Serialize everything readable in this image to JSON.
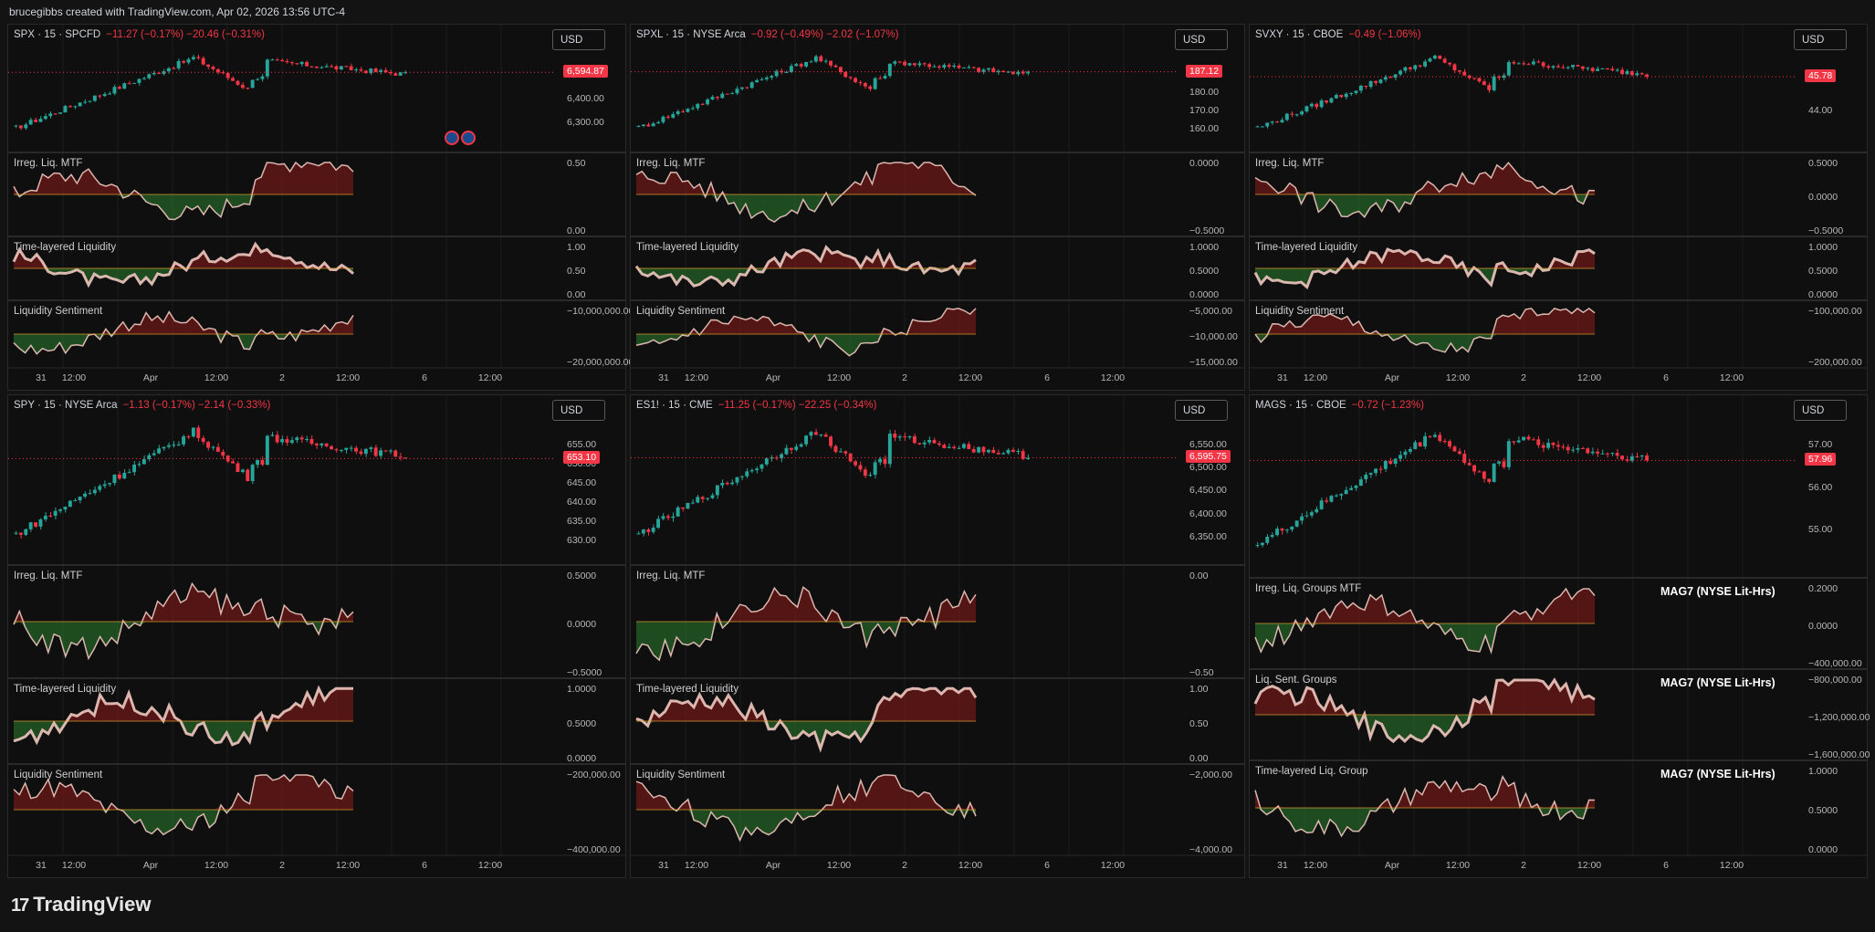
{
  "header": {
    "text": "brucegibbs created with TradingView.com, Apr 02, 2026 13:56 UTC-4"
  },
  "footer": {
    "logo_text": "TradingView"
  },
  "colors": {
    "up": "#26a69a",
    "down": "#f23645",
    "green_fill": "#2e7d32",
    "red_fill": "#8e1b1b",
    "background": "#131313",
    "panel": "#0f0f0f"
  },
  "chart_data": [
    {
      "type": "candlestick",
      "symbol_line": "SPX · 15 · SPCFD",
      "change_line": "−11.27 (−0.17%)  −20.46 (−0.31%)",
      "currency": "USD",
      "last_price": "6,594.87",
      "x_ticks": [
        "31",
        "12:00",
        "Apr",
        "12:00",
        "2",
        "12:00",
        "6",
        "12:00"
      ],
      "price_ticks": [
        "6,500.00",
        "6,400.00",
        "6,300.00"
      ],
      "indicators": [
        {
          "name": "Irreg. Liq. MTF",
          "ticks": [
            "0.50",
            "0.00"
          ]
        },
        {
          "name": "Time-layered Liquidity",
          "ticks": [
            "1.00",
            "0.50",
            "0.00"
          ]
        },
        {
          "name": "Liquidity Sentiment",
          "ticks": [
            "−10,000,000.00",
            "−20,000,000.00"
          ]
        }
      ]
    },
    {
      "type": "candlestick",
      "symbol_line": "SPXL · 15 · NYSE Arca",
      "change_line": "−0.92 (−0.49%)  −2.02 (−1.07%)",
      "currency": "USD",
      "last_price": "187.12",
      "x_ticks": [
        "31",
        "12:00",
        "Apr",
        "12:00",
        "2",
        "12:00",
        "6",
        "12:00"
      ],
      "price_ticks": [
        "190.00",
        "180.00",
        "170.00",
        "160.00"
      ],
      "indicators": [
        {
          "name": "Irreg. Liq. MTF",
          "ticks": [
            "0.0000",
            "−0.5000"
          ]
        },
        {
          "name": "Time-layered Liquidity",
          "ticks": [
            "1.0000",
            "0.5000",
            "0.0000"
          ]
        },
        {
          "name": "Liquidity Sentiment",
          "ticks": [
            "−5,000.00",
            "−10,000.00",
            "−15,000.00"
          ]
        }
      ]
    },
    {
      "type": "candlestick",
      "symbol_line": "SVXY · 15 · CBOE",
      "change_line": "−0.49 (−1.06%)",
      "currency": "USD",
      "last_price": "45.78",
      "x_ticks": [
        "31",
        "12:00",
        "Apr",
        "12:00",
        "2",
        "12:00",
        "6",
        "12:00"
      ],
      "price_ticks": [
        "45.00",
        "44.00"
      ],
      "indicators": [
        {
          "name": "Irreg. Liq. MTF",
          "ticks": [
            "0.5000",
            "0.0000",
            "−0.5000"
          ]
        },
        {
          "name": "Time-layered Liquidity",
          "ticks": [
            "1.0000",
            "0.5000",
            "0.0000"
          ]
        },
        {
          "name": "Liquidity Sentiment",
          "ticks": [
            "−100,000.00",
            "−200,000.00"
          ]
        }
      ]
    },
    {
      "type": "candlestick",
      "symbol_line": "SPY · 15 · NYSE Arca",
      "change_line": "−1.13 (−0.17%)  −2.14 (−0.33%)",
      "currency": "USD",
      "last_price": "653.10",
      "x_ticks": [
        "31",
        "12:00",
        "Apr",
        "12:00",
        "2",
        "12:00",
        "6",
        "12:00"
      ],
      "price_ticks": [
        "655.00",
        "650.00",
        "645.00",
        "640.00",
        "635.00",
        "630.00"
      ],
      "indicators": [
        {
          "name": "Irreg. Liq. MTF",
          "ticks": [
            "0.5000",
            "0.0000",
            "−0.5000"
          ]
        },
        {
          "name": "Time-layered Liquidity",
          "ticks": [
            "1.0000",
            "0.5000",
            "0.0000"
          ]
        },
        {
          "name": "Liquidity Sentiment",
          "ticks": [
            "−200,000.00",
            "−400,000.00"
          ]
        }
      ]
    },
    {
      "type": "candlestick",
      "symbol_line": "ES1! · 15 · CME",
      "change_line": "−11.25 (−0.17%)  −22.25 (−0.34%)",
      "currency": "USD",
      "last_price": "6,595.75",
      "x_ticks": [
        "31",
        "12:00",
        "Apr",
        "12:00",
        "2",
        "12:00",
        "6",
        "12:00"
      ],
      "price_ticks": [
        "6,550.00",
        "6,500.00",
        "6,450.00",
        "6,400.00",
        "6,350.00"
      ],
      "indicators": [
        {
          "name": "Irreg. Liq. MTF",
          "ticks": [
            "0.00",
            "−0.50"
          ]
        },
        {
          "name": "Time-layered Liquidity",
          "ticks": [
            "1.00",
            "0.50",
            "0.00"
          ]
        },
        {
          "name": "Liquidity Sentiment",
          "ticks": [
            "−2,000.00",
            "−4,000.00"
          ]
        }
      ]
    },
    {
      "type": "candlestick",
      "symbol_line": "MAGS · 15 · CBOE",
      "change_line": "−0.72 (−1.23%)",
      "currency": "USD",
      "last_price": "57.96",
      "x_ticks": [
        "31",
        "12:00",
        "Apr",
        "12:00",
        "2",
        "12:00",
        "6",
        "12:00"
      ],
      "price_ticks": [
        "57.00",
        "56.00",
        "55.00"
      ],
      "indicators": [
        {
          "name": "Irreg. Liq. Groups MTF",
          "group": "MAG7 (NYSE Lit-Hrs)",
          "ticks": [
            "0.2000",
            "0.0000",
            "−400,000.00"
          ]
        },
        {
          "name": "Liq. Sent. Groups",
          "group": "MAG7 (NYSE Lit-Hrs)",
          "ticks": [
            "−800,000.00",
            "−1,200,000.00",
            "−1,600,000.00"
          ]
        },
        {
          "name": "Time-layered Liq. Group",
          "group": "MAG7 (NYSE Lit-Hrs)",
          "ticks": [
            "1.0000",
            "0.5000",
            "0.0000"
          ]
        }
      ]
    }
  ]
}
